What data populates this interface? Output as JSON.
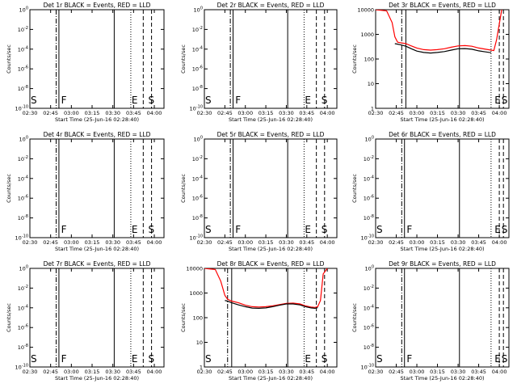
{
  "figure": {
    "background": "#ffffff"
  },
  "x_ticks": [
    "02:30",
    "02:45",
    "03:00",
    "03:15",
    "03:30",
    "03:45",
    "04:00"
  ],
  "x_label": "Start Time (25-Jun-16 02:28:40)",
  "y_label": "Counts/sec",
  "colors": {
    "events": "#000000",
    "lld": "#ff0000"
  },
  "chart_data": [
    {
      "type": "line",
      "title": "Det 1r BLACK = Events, RED = LLD",
      "ylabel": "Counts/sec",
      "xlabel": "Start Time (25-Jun-16 02:28:40)",
      "xlim": [
        "02:30",
        "04:07"
      ],
      "ytick_labels": [
        "10^0",
        "10^-2",
        "10^-4",
        "10^-6",
        "10^-8",
        "10^-10"
      ],
      "vlines": [
        {
          "time": "02:49",
          "style": "dashdot"
        },
        {
          "time": "02:51",
          "style": "solid"
        },
        {
          "time": "03:31",
          "style": "solid"
        },
        {
          "time": "03:43",
          "style": "dotted"
        },
        {
          "time": "03:52",
          "style": "dashed"
        },
        {
          "time": "03:58",
          "style": "dashed"
        }
      ],
      "markers": [
        {
          "label": "S",
          "time": "02:30"
        },
        {
          "label": "F",
          "time": "02:52"
        },
        {
          "label": "E",
          "time": "03:43"
        },
        {
          "label": "S",
          "time": "03:55"
        }
      ],
      "series": []
    },
    {
      "type": "line",
      "title": "Det 2r BLACK = Events, RED = LLD",
      "ylabel": "Counts/sec",
      "xlabel": "Start Time (25-Jun-16 02:28:40)",
      "xlim": [
        "02:30",
        "04:07"
      ],
      "ytick_labels": [
        "10^0",
        "10^-2",
        "10^-4",
        "10^-6",
        "10^-8",
        "10^-10"
      ],
      "vlines": [
        {
          "time": "02:49",
          "style": "dashdot"
        },
        {
          "time": "02:51",
          "style": "solid"
        },
        {
          "time": "03:31",
          "style": "solid"
        },
        {
          "time": "03:43",
          "style": "dotted"
        },
        {
          "time": "03:52",
          "style": "dashed"
        },
        {
          "time": "03:58",
          "style": "dashed"
        }
      ],
      "markers": [
        {
          "label": "S",
          "time": "02:30"
        },
        {
          "label": "F",
          "time": "02:52"
        },
        {
          "label": "E",
          "time": "03:43"
        },
        {
          "label": "S",
          "time": "03:55"
        }
      ],
      "series": []
    },
    {
      "type": "line",
      "title": "Det 3r BLACK = Events, RED = LLD",
      "ylabel": "Counts/sec",
      "xlabel": "Start Time (25-Jun-16 02:28:40)",
      "xlim": [
        "02:30",
        "04:07"
      ],
      "ytick_labels": [
        "10000",
        "1000",
        "100",
        "10",
        "1"
      ],
      "log_scale": true,
      "ylim": [
        1,
        10000
      ],
      "vlines": [
        {
          "time": "02:49",
          "style": "dashdot"
        },
        {
          "time": "02:52",
          "style": "solid"
        },
        {
          "time": "03:31",
          "style": "solid"
        },
        {
          "time": "03:54",
          "style": "dotted"
        },
        {
          "time": "04:00",
          "style": "dashed"
        },
        {
          "time": "04:03",
          "style": "dashed"
        }
      ],
      "markers": [
        {
          "label": "E",
          "time": "03:56"
        },
        {
          "label": "S",
          "time": "04:01"
        }
      ],
      "series": [
        {
          "color": "#ff0000",
          "x": [
            "02:30",
            "02:38",
            "02:42",
            "02:44",
            "02:46",
            "02:48",
            "02:52",
            "02:56",
            "03:00",
            "03:05",
            "03:10",
            "03:15",
            "03:20",
            "03:25",
            "03:30",
            "03:35",
            "03:40",
            "03:45",
            "03:50",
            "03:54",
            "03:56",
            "03:58",
            "04:02"
          ],
          "values": [
            10000,
            9000,
            3000,
            800,
            480,
            460,
            420,
            340,
            280,
            240,
            230,
            240,
            260,
            300,
            340,
            350,
            330,
            280,
            250,
            230,
            220,
            600,
            12000
          ]
        },
        {
          "color": "#000000",
          "x": [
            "02:44",
            "02:46",
            "02:48",
            "02:52",
            "02:56",
            "03:00",
            "03:05",
            "03:10",
            "03:15",
            "03:20",
            "03:25",
            "03:30",
            "03:35",
            "03:40",
            "03:45",
            "03:50",
            "03:54"
          ],
          "values": [
            420,
            400,
            380,
            330,
            260,
            210,
            185,
            175,
            185,
            200,
            230,
            260,
            265,
            250,
            215,
            195,
            180
          ]
        }
      ]
    },
    {
      "type": "line",
      "title": "Det 4r BLACK = Events, RED = LLD",
      "ylabel": "Counts/sec",
      "xlabel": "Start Time (25-Jun-16 02:28:40)",
      "xlim": [
        "02:30",
        "04:07"
      ],
      "ytick_labels": [
        "10^0",
        "10^-2",
        "10^-4",
        "10^-6",
        "10^-8",
        "10^-10"
      ],
      "vlines": [
        {
          "time": "02:49",
          "style": "dashdot"
        },
        {
          "time": "02:51",
          "style": "solid"
        },
        {
          "time": "03:31",
          "style": "solid"
        },
        {
          "time": "03:43",
          "style": "dotted"
        },
        {
          "time": "03:52",
          "style": "dashed"
        },
        {
          "time": "03:58",
          "style": "dashed"
        }
      ],
      "markers": [
        {
          "label": "F",
          "time": "02:52"
        },
        {
          "label": "E",
          "time": "03:43"
        },
        {
          "label": "S",
          "time": "03:55"
        }
      ],
      "series": []
    },
    {
      "type": "line",
      "title": "Det 5r BLACK = Events, RED = LLD",
      "ylabel": "Counts/sec",
      "xlabel": "Start Time (25-Jun-16 02:28:40)",
      "xlim": [
        "02:30",
        "04:07"
      ],
      "ytick_labels": [
        "10^0",
        "10^-2",
        "10^-4",
        "10^-6",
        "10^-8",
        "10^-10"
      ],
      "vlines": [
        {
          "time": "02:49",
          "style": "dashdot"
        },
        {
          "time": "02:51",
          "style": "solid"
        },
        {
          "time": "03:31",
          "style": "solid"
        },
        {
          "time": "03:43",
          "style": "dotted"
        },
        {
          "time": "03:52",
          "style": "dashed"
        },
        {
          "time": "03:58",
          "style": "dashed"
        }
      ],
      "markers": [
        {
          "label": "S",
          "time": "02:30"
        },
        {
          "label": "F",
          "time": "02:52"
        },
        {
          "label": "E",
          "time": "03:43"
        },
        {
          "label": "S",
          "time": "03:55"
        }
      ],
      "series": []
    },
    {
      "type": "line",
      "title": "Det 6r BLACK = Events, RED = LLD",
      "ylabel": "Counts/sec",
      "xlabel": "Start Time (25-Jun-16 02:28:40)",
      "xlim": [
        "02:30",
        "04:07"
      ],
      "ytick_labels": [
        "10^0",
        "10^-2",
        "10^-4",
        "10^-6",
        "10^-8",
        "10^-10"
      ],
      "vlines": [
        {
          "time": "02:49",
          "style": "dashdot"
        },
        {
          "time": "02:51",
          "style": "solid"
        },
        {
          "time": "03:31",
          "style": "solid"
        },
        {
          "time": "03:54",
          "style": "dotted"
        },
        {
          "time": "04:00",
          "style": "dashed"
        },
        {
          "time": "04:03",
          "style": "dashed"
        }
      ],
      "markers": [
        {
          "label": "S",
          "time": "02:30"
        },
        {
          "label": "F",
          "time": "02:52"
        },
        {
          "label": "E",
          "time": "03:56"
        },
        {
          "label": "S",
          "time": "04:01"
        }
      ],
      "series": []
    },
    {
      "type": "line",
      "title": "Det 7r BLACK = Events, RED = LLD",
      "ylabel": "Counts/sec",
      "xlabel": "Start Time (25-Jun-16 02:28:40)",
      "xlim": [
        "02:30",
        "04:07"
      ],
      "ytick_labels": [
        "10^0",
        "10^-2",
        "10^-4",
        "10^-6",
        "10^-8",
        "10^-10"
      ],
      "vlines": [
        {
          "time": "02:49",
          "style": "dashdot"
        },
        {
          "time": "02:51",
          "style": "solid"
        },
        {
          "time": "03:31",
          "style": "solid"
        },
        {
          "time": "03:43",
          "style": "dotted"
        },
        {
          "time": "03:52",
          "style": "dashed"
        },
        {
          "time": "03:58",
          "style": "dashed"
        }
      ],
      "markers": [
        {
          "label": "S",
          "time": "02:30"
        },
        {
          "label": "F",
          "time": "02:52"
        },
        {
          "label": "E",
          "time": "03:43"
        },
        {
          "label": "S",
          "time": "03:55"
        }
      ],
      "series": []
    },
    {
      "type": "line",
      "title": "Det 8r BLACK = Events, RED = LLD",
      "ylabel": "Counts/sec",
      "xlabel": "Start Time (25-Jun-16 02:28:40)",
      "xlim": [
        "02:30",
        "04:07"
      ],
      "ytick_labels": [
        "10000",
        "1000",
        "100",
        "10",
        "1"
      ],
      "log_scale": true,
      "ylim": [
        1,
        10000
      ],
      "vlines": [
        {
          "time": "02:47",
          "style": "dashdot"
        },
        {
          "time": "02:50",
          "style": "solid"
        },
        {
          "time": "03:31",
          "style": "solid"
        },
        {
          "time": "03:43",
          "style": "dotted"
        },
        {
          "time": "03:52",
          "style": "dashed"
        },
        {
          "time": "03:58",
          "style": "dashed"
        }
      ],
      "markers": [
        {
          "label": "S",
          "time": "02:30"
        },
        {
          "label": "E",
          "time": "03:43"
        },
        {
          "label": "S",
          "time": "03:55"
        }
      ],
      "series": [
        {
          "color": "#ff0000",
          "x": [
            "02:30",
            "02:38",
            "02:42",
            "02:45",
            "02:47",
            "02:50",
            "02:55",
            "03:00",
            "03:05",
            "03:10",
            "03:15",
            "03:20",
            "03:25",
            "03:30",
            "03:35",
            "03:40",
            "03:44",
            "03:48",
            "03:51",
            "03:53",
            "03:55",
            "03:57",
            "04:00"
          ],
          "values": [
            10000,
            9000,
            3000,
            800,
            560,
            470,
            400,
            320,
            280,
            270,
            280,
            300,
            340,
            380,
            390,
            360,
            300,
            270,
            260,
            280,
            500,
            6000,
            10000
          ]
        },
        {
          "color": "#000000",
          "x": [
            "02:45",
            "02:47",
            "02:50",
            "02:55",
            "03:00",
            "03:05",
            "03:10",
            "03:15",
            "03:20",
            "03:25",
            "03:30",
            "03:35",
            "03:40",
            "03:44",
            "03:48",
            "03:51",
            "03:53"
          ],
          "values": [
            500,
            470,
            400,
            330,
            280,
            245,
            240,
            250,
            280,
            320,
            360,
            360,
            330,
            280,
            250,
            240,
            255
          ]
        }
      ]
    },
    {
      "type": "line",
      "title": "Det 9r BLACK = Events, RED = LLD",
      "ylabel": "Counts/sec",
      "xlabel": "Start Time (25-Jun-16 02:28:40)",
      "xlim": [
        "02:30",
        "04:07"
      ],
      "ytick_labels": [
        "10^0",
        "10^-2",
        "10^-4",
        "10^-6",
        "10^-8",
        "10^-10"
      ],
      "vlines": [
        {
          "time": "02:49",
          "style": "dashdot"
        },
        {
          "time": "02:51",
          "style": "solid"
        },
        {
          "time": "03:31",
          "style": "solid"
        },
        {
          "time": "03:54",
          "style": "dotted"
        },
        {
          "time": "04:00",
          "style": "dashed"
        },
        {
          "time": "04:03",
          "style": "dashed"
        }
      ],
      "markers": [
        {
          "label": "S",
          "time": "02:30"
        },
        {
          "label": "F",
          "time": "02:52"
        },
        {
          "label": "E",
          "time": "03:56"
        },
        {
          "label": "S",
          "time": "04:01"
        }
      ],
      "series": []
    }
  ]
}
